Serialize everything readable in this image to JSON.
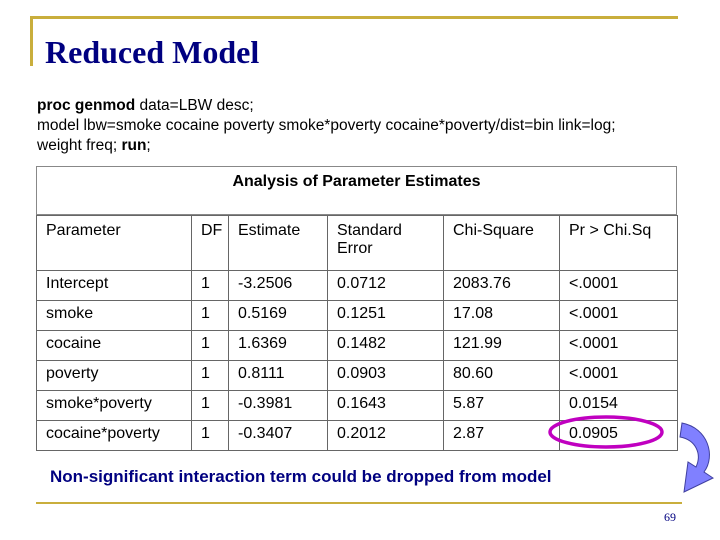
{
  "slide": {
    "title": "Reduced Model",
    "page_number": "69",
    "accent_colors": {
      "frame": "#c9ae3c",
      "title": "#000080",
      "circle": "#c000c0",
      "arrow": "#8080ff"
    }
  },
  "code": {
    "line1_kw": "proc genmod",
    "line1_rest": " data=LBW desc;",
    "line2": "model lbw=smoke cocaine poverty smoke*poverty cocaine*poverty/dist=bin link=log;",
    "line3_pre": "weight freq;  ",
    "line3_kw": "run",
    "line3_post": ";"
  },
  "analysis_title": "Analysis of Parameter Estimates",
  "table": {
    "headers": [
      "Parameter",
      "DF",
      "Estimate",
      "Standard Error",
      "Chi-Square",
      "Pr > Chi.Sq"
    ],
    "rows": [
      [
        "Intercept",
        "1",
        "-3.2506",
        "0.0712",
        "2083.76",
        "<.0001"
      ],
      [
        "smoke",
        "1",
        "0.5169",
        "0.1251",
        "17.08",
        "<.0001"
      ],
      [
        "cocaine",
        "1",
        "1.6369",
        "0.1482",
        "121.99",
        "<.0001"
      ],
      [
        "poverty",
        "1",
        "0.8111",
        "0.0903",
        "80.60",
        "<.0001"
      ],
      [
        "smoke*poverty",
        "1",
        "-0.3981",
        "0.1643",
        "5.87",
        "0.0154"
      ],
      [
        "cocaine*poverty",
        "1",
        "-0.3407",
        "0.2012",
        "2.87",
        "0.0905"
      ]
    ]
  },
  "note": "Non-significant interaction term could be dropped from model"
}
